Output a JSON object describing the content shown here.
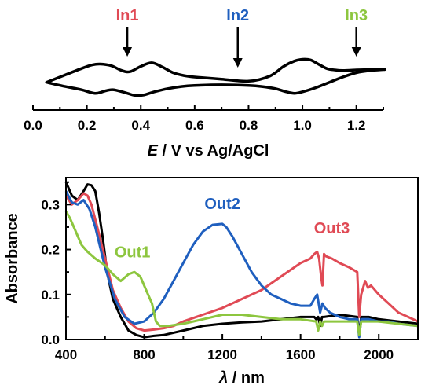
{
  "colors": {
    "black": "#000000",
    "red": "#e04a55",
    "blue": "#1f5fbf",
    "green": "#8dc63f"
  },
  "chart_data": [
    {
      "type": "line",
      "name": "cyclic-voltammogram",
      "xlabel_italic": "E",
      "xlabel_rest": " / V vs Ag/AgCl",
      "xlim": [
        0.0,
        1.3
      ],
      "xticks": [
        "0.0",
        "0.2",
        "0.4",
        "0.6",
        "0.8",
        "1.0",
        "1.2"
      ],
      "xtick_values": [
        0.0,
        0.2,
        0.4,
        0.6,
        0.8,
        1.0,
        1.2
      ],
      "grid": false,
      "annotations": [
        {
          "label": "In1",
          "x": 0.35,
          "color": "#e04a55"
        },
        {
          "label": "In2",
          "x": 0.76,
          "color": "#1f5fbf"
        },
        {
          "label": "In3",
          "x": 1.2,
          "color": "#8dc63f"
        }
      ],
      "cv_upper": {
        "x": [
          0.05,
          0.12,
          0.18,
          0.22,
          0.25,
          0.29,
          0.33,
          0.36,
          0.4,
          0.44,
          0.48,
          0.52,
          0.56,
          0.6,
          0.7,
          0.8,
          0.88,
          0.93,
          0.97,
          1.0,
          1.03,
          1.06,
          1.09,
          1.12,
          1.15,
          1.2,
          1.25,
          1.3
        ],
        "y": [
          -0.1,
          0.25,
          0.55,
          0.72,
          0.76,
          0.68,
          0.45,
          0.4,
          0.65,
          0.82,
          0.62,
          0.35,
          0.22,
          0.15,
          0.05,
          -0.05,
          0.2,
          0.65,
          0.9,
          0.98,
          0.95,
          0.75,
          0.55,
          0.48,
          0.45,
          0.48,
          0.5,
          0.5
        ]
      },
      "cv_lower": {
        "x": [
          1.3,
          1.25,
          1.2,
          1.15,
          1.1,
          1.05,
          1.0,
          0.97,
          0.94,
          0.9,
          0.85,
          0.8,
          0.7,
          0.6,
          0.55,
          0.5,
          0.45,
          0.41,
          0.38,
          0.35,
          0.3,
          0.27,
          0.23,
          0.18,
          0.12,
          0.05
        ],
        "y": [
          0.5,
          0.45,
          0.35,
          0.15,
          -0.1,
          -0.35,
          -0.55,
          -0.62,
          -0.55,
          -0.4,
          -0.3,
          -0.25,
          -0.22,
          -0.25,
          -0.3,
          -0.4,
          -0.55,
          -0.7,
          -0.72,
          -0.62,
          -0.45,
          -0.5,
          -0.62,
          -0.45,
          -0.3,
          -0.1
        ]
      }
    },
    {
      "type": "line",
      "name": "absorption-spectra",
      "ylabel": "Absorbance",
      "xlabel_italic": "λ",
      "xlabel_rest": " / nm",
      "xlim": [
        400,
        2200
      ],
      "ylim": [
        0.0,
        0.36
      ],
      "xticks": [
        "400",
        "800",
        "1200",
        "1600",
        "2000"
      ],
      "xtick_values": [
        400,
        800,
        1200,
        1600,
        2000
      ],
      "yticks": [
        "0.0",
        "0.1",
        "0.2",
        "0.3"
      ],
      "ytick_values": [
        0.0,
        0.1,
        0.2,
        0.3
      ],
      "grid": false,
      "annotations": [
        {
          "label": "Out1",
          "x": 740,
          "y": 0.183,
          "color": "#8dc63f"
        },
        {
          "label": "Out2",
          "x": 1200,
          "y": 0.29,
          "color": "#1f5fbf"
        },
        {
          "label": "Out3",
          "x": 1760,
          "y": 0.236,
          "color": "#e04a55"
        }
      ],
      "series": [
        {
          "color": "#000000",
          "x": [
            400,
            430,
            460,
            490,
            510,
            530,
            550,
            570,
            590,
            610,
            640,
            680,
            720,
            760,
            800,
            850,
            900,
            950,
            1000,
            1100,
            1200,
            1300,
            1400,
            1500,
            1600,
            1670,
            1680,
            1690,
            1700,
            1710,
            1720,
            1800,
            1890,
            1900,
            1910,
            1950,
            2000,
            2100,
            2200
          ],
          "y": [
            0.35,
            0.32,
            0.31,
            0.33,
            0.345,
            0.343,
            0.33,
            0.28,
            0.22,
            0.15,
            0.09,
            0.05,
            0.02,
            0.01,
            0.005,
            0.008,
            0.01,
            0.015,
            0.02,
            0.03,
            0.035,
            0.038,
            0.04,
            0.045,
            0.05,
            0.05,
            0.045,
            0.05,
            0.03,
            0.05,
            0.05,
            0.055,
            0.05,
            0.01,
            0.05,
            0.05,
            0.045,
            0.04,
            0.035
          ]
        },
        {
          "color": "#e04a55",
          "x": [
            400,
            430,
            460,
            490,
            510,
            530,
            560,
            600,
            640,
            680,
            720,
            760,
            800,
            850,
            900,
            950,
            1000,
            1100,
            1200,
            1300,
            1400,
            1500,
            1600,
            1650,
            1670,
            1685,
            1695,
            1705,
            1712,
            1720,
            1730,
            1760,
            1800,
            1850,
            1890,
            1900,
            1910,
            1930,
            1945,
            1960,
            2000,
            2050,
            2100,
            2150,
            2200
          ],
          "y": [
            0.32,
            0.3,
            0.31,
            0.325,
            0.32,
            0.3,
            0.25,
            0.18,
            0.11,
            0.07,
            0.04,
            0.025,
            0.02,
            0.022,
            0.025,
            0.03,
            0.04,
            0.055,
            0.07,
            0.09,
            0.11,
            0.14,
            0.17,
            0.18,
            0.19,
            0.195,
            0.18,
            0.14,
            0.12,
            0.19,
            0.185,
            0.18,
            0.17,
            0.16,
            0.15,
            0.05,
            0.1,
            0.13,
            0.115,
            0.12,
            0.1,
            0.08,
            0.06,
            0.05,
            0.04
          ]
        },
        {
          "color": "#1f5fbf",
          "x": [
            400,
            430,
            460,
            490,
            520,
            550,
            600,
            650,
            700,
            750,
            800,
            850,
            900,
            950,
            1000,
            1050,
            1100,
            1150,
            1200,
            1220,
            1250,
            1300,
            1350,
            1400,
            1450,
            1500,
            1550,
            1600,
            1650,
            1670,
            1685,
            1700,
            1712,
            1725,
            1750,
            1800,
            1850,
            1890,
            1900,
            1910,
            1950,
            2000,
            2050,
            2100,
            2200
          ],
          "y": [
            0.33,
            0.305,
            0.3,
            0.31,
            0.29,
            0.25,
            0.16,
            0.09,
            0.05,
            0.035,
            0.04,
            0.06,
            0.09,
            0.13,
            0.17,
            0.21,
            0.24,
            0.255,
            0.257,
            0.25,
            0.23,
            0.19,
            0.15,
            0.12,
            0.1,
            0.09,
            0.08,
            0.075,
            0.075,
            0.09,
            0.1,
            0.06,
            0.08,
            0.07,
            0.06,
            0.05,
            0.045,
            0.045,
            0.005,
            0.045,
            0.045,
            0.04,
            0.04,
            0.035,
            0.03
          ]
        },
        {
          "color": "#8dc63f",
          "x": [
            400,
            420,
            440,
            460,
            480,
            510,
            550,
            600,
            640,
            680,
            720,
            750,
            780,
            810,
            840,
            860,
            880,
            920,
            1000,
            1100,
            1200,
            1300,
            1400,
            1500,
            1600,
            1680,
            1690,
            1700,
            1710,
            1720,
            1800,
            1890,
            1900,
            1910,
            2000,
            2100,
            2200
          ],
          "y": [
            0.285,
            0.27,
            0.25,
            0.23,
            0.21,
            0.195,
            0.18,
            0.165,
            0.145,
            0.13,
            0.145,
            0.15,
            0.14,
            0.11,
            0.08,
            0.04,
            0.03,
            0.03,
            0.035,
            0.045,
            0.055,
            0.055,
            0.05,
            0.045,
            0.045,
            0.04,
            0.02,
            0.04,
            0.03,
            0.04,
            0.04,
            0.04,
            0.01,
            0.04,
            0.04,
            0.035,
            0.03
          ]
        }
      ]
    }
  ]
}
